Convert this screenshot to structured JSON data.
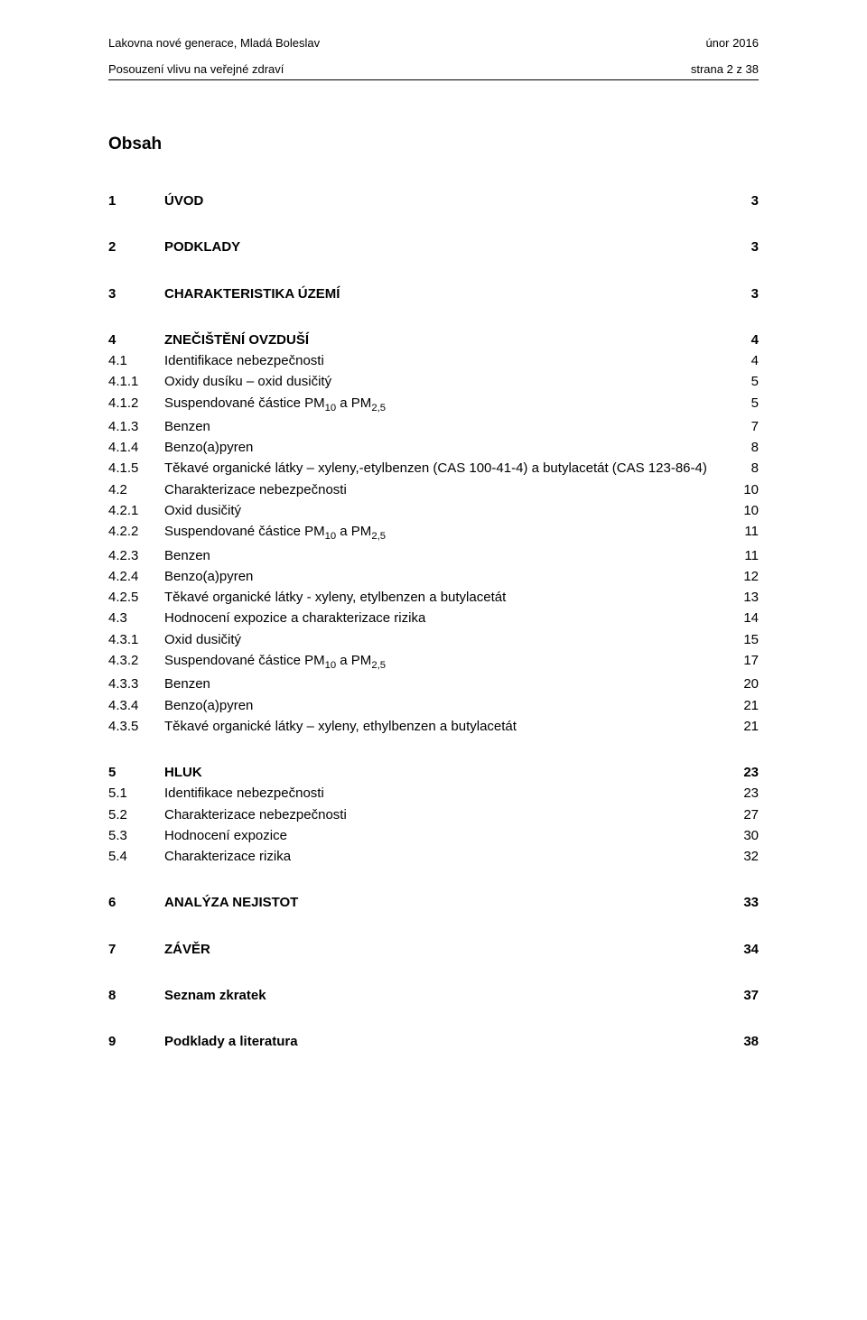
{
  "header": {
    "left_top": "Lakovna nové generace, Mladá Boleslav",
    "right_top": "únor 2016",
    "left_sub": "Posouzení vlivu na veřejné zdraví",
    "right_sub": "strana 2 z 38"
  },
  "title": "Obsah",
  "blocks": [
    {
      "rows": [
        {
          "num": "1",
          "label": "ÚVOD",
          "page": "3",
          "bold": true
        }
      ]
    },
    {
      "rows": [
        {
          "num": "2",
          "label": "PODKLADY",
          "page": "3",
          "bold": true
        }
      ]
    },
    {
      "rows": [
        {
          "num": "3",
          "label": "CHARAKTERISTIKA ÚZEMÍ",
          "page": "3",
          "bold": true
        }
      ]
    },
    {
      "rows": [
        {
          "num": "4",
          "label": "ZNEČIŠTĚNÍ OVZDUŠÍ",
          "page": "4",
          "bold": true
        },
        {
          "num": "4.1",
          "label": "Identifikace nebezpečnosti",
          "page": "4"
        },
        {
          "num": "4.1.1",
          "label": "Oxidy dusíku – oxid dusičitý",
          "page": "5"
        },
        {
          "num": "4.1.2",
          "label": "Suspendované částice PM<sub>10</sub> a PM<sub>2,5</sub>",
          "page": "5"
        },
        {
          "num": "4.1.3",
          "label": "Benzen",
          "page": "7"
        },
        {
          "num": "4.1.4",
          "label": "Benzo(a)pyren",
          "page": "8"
        },
        {
          "num": "4.1.5",
          "label": "Těkavé organické látky – xyleny,-etylbenzen (CAS 100-41-4) a butylacetát (CAS 123-86-4)",
          "page": "8"
        },
        {
          "num": "4.2",
          "label": "Charakterizace nebezpečnosti",
          "page": "10"
        },
        {
          "num": "4.2.1",
          "label": "Oxid dusičitý",
          "page": "10"
        },
        {
          "num": "4.2.2",
          "label": "Suspendované částice PM<sub>10</sub> a PM<sub>2,5</sub>",
          "page": "11"
        },
        {
          "num": "4.2.3",
          "label": "Benzen",
          "page": "11"
        },
        {
          "num": "4.2.4",
          "label": "Benzo(a)pyren",
          "page": "12"
        },
        {
          "num": "4.2.5",
          "label": "Těkavé organické látky - xyleny, etylbenzen a butylacetát",
          "page": "13"
        },
        {
          "num": "4.3",
          "label": "Hodnocení expozice a charakterizace rizika",
          "page": "14"
        },
        {
          "num": "4.3.1",
          "label": "Oxid dusičitý",
          "page": "15"
        },
        {
          "num": "4.3.2",
          "label": "Suspendované částice PM<sub>10</sub> a PM<sub>2,5</sub>",
          "page": "17"
        },
        {
          "num": "4.3.3",
          "label": "Benzen",
          "page": "20"
        },
        {
          "num": "4.3.4",
          "label": "Benzo(a)pyren",
          "page": "21"
        },
        {
          "num": "4.3.5",
          "label": "Těkavé organické látky – xyleny, ethylbenzen a butylacetát",
          "page": "21"
        }
      ]
    },
    {
      "rows": [
        {
          "num": "5",
          "label": "HLUK",
          "page": "23",
          "bold": true
        },
        {
          "num": "5.1",
          "label": "Identifikace nebezpečnosti",
          "page": "23"
        },
        {
          "num": "5.2",
          "label": "Charakterizace nebezpečnosti",
          "page": "27"
        },
        {
          "num": "5.3",
          "label": "Hodnocení expozice",
          "page": "30"
        },
        {
          "num": "5.4",
          "label": "Charakterizace rizika",
          "page": "32"
        }
      ]
    },
    {
      "rows": [
        {
          "num": "6",
          "label": "ANALÝZA NEJISTOT",
          "page": "33",
          "bold": true
        }
      ]
    },
    {
      "rows": [
        {
          "num": "7",
          "label": "ZÁVĚR",
          "page": "34",
          "bold": true
        }
      ]
    },
    {
      "rows": [
        {
          "num": "8",
          "label": "Seznam zkratek",
          "page": "37",
          "bold": true
        }
      ]
    },
    {
      "rows": [
        {
          "num": "9",
          "label": "Podklady a literatura",
          "page": "38",
          "bold": true
        }
      ]
    }
  ]
}
